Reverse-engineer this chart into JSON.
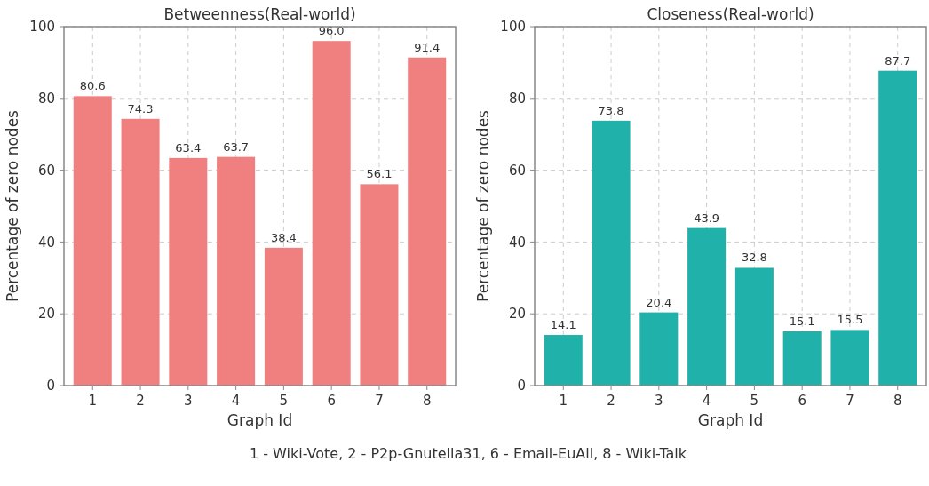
{
  "chart_data": [
    {
      "type": "bar",
      "title": "Betweenness(Real-world)",
      "xlabel": "Graph Id",
      "ylabel": "Percentage of zero nodes",
      "categories": [
        "1",
        "2",
        "3",
        "4",
        "5",
        "6",
        "7",
        "8"
      ],
      "values": [
        80.6,
        74.3,
        63.4,
        63.7,
        38.4,
        96.0,
        56.1,
        91.4
      ],
      "value_labels": [
        "80.6",
        "74.3",
        "63.4",
        "63.7",
        "38.4",
        "96.0",
        "56.1",
        "91.4"
      ],
      "color": "#f08080",
      "ylim": [
        0,
        100
      ],
      "yticks": [
        0,
        20,
        40,
        60,
        80,
        100
      ],
      "grid": true,
      "annotations": [
        "1 - Wiki-Vote, 2 - P2p-Gnutella31, 6 - Email-EuAll, 8 - Wiki-Talk"
      ]
    },
    {
      "type": "bar",
      "title": "Closeness(Real-world)",
      "xlabel": "Graph Id",
      "ylabel": "Percentage of zero nodes",
      "categories": [
        "1",
        "2",
        "3",
        "4",
        "5",
        "6",
        "7",
        "8"
      ],
      "values": [
        14.1,
        73.8,
        20.4,
        43.9,
        32.8,
        15.1,
        15.5,
        87.7
      ],
      "value_labels": [
        "14.1",
        "73.8",
        "20.4",
        "43.9",
        "32.8",
        "15.1",
        "15.5",
        "87.7"
      ],
      "color": "#20b2aa",
      "ylim": [
        0,
        100
      ],
      "yticks": [
        0,
        20,
        40,
        60,
        80,
        100
      ],
      "grid": true
    }
  ]
}
